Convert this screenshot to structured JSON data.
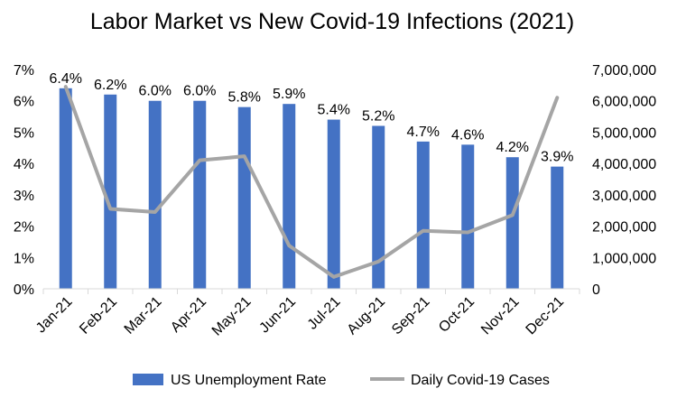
{
  "chart_data": {
    "type": "bar",
    "title": "Labor Market vs New Covid-19 Infections (2021)",
    "categories": [
      "Jan-21",
      "Feb-21",
      "Mar-21",
      "Apr-21",
      "May-21",
      "Jun-21",
      "Jul-21",
      "Aug-21",
      "Sep-21",
      "Oct-21",
      "Nov-21",
      "Dec-21"
    ],
    "series": [
      {
        "name": "US Unemployment Rate",
        "type": "bar",
        "axis": "left",
        "color": "#4472C4",
        "values": [
          6.4,
          6.2,
          6.0,
          6.0,
          5.8,
          5.9,
          5.4,
          5.2,
          4.7,
          4.6,
          4.2,
          3.9
        ],
        "data_labels": [
          "6.4%",
          "6.2%",
          "6.0%",
          "6.0%",
          "5.8%",
          "5.9%",
          "5.4%",
          "5.2%",
          "4.7%",
          "4.6%",
          "4.2%",
          "3.9%"
        ]
      },
      {
        "name": "Daily Covid-19 Cases",
        "type": "line",
        "axis": "right",
        "color": "#A5A5A5",
        "values": [
          6450000,
          2550000,
          2450000,
          4100000,
          4230000,
          1380000,
          380000,
          870000,
          1850000,
          1800000,
          2350000,
          6100000
        ]
      }
    ],
    "y_left": {
      "ylim": [
        0,
        7
      ],
      "tick_labels": [
        "0%",
        "1%",
        "2%",
        "3%",
        "4%",
        "5%",
        "6%",
        "7%"
      ]
    },
    "y_right": {
      "ylim": [
        0,
        7000000
      ],
      "tick_labels": [
        "0",
        "1,000,000",
        "2,000,000",
        "3,000,000",
        "4,000,000",
        "5,000,000",
        "6,000,000",
        "7,000,000"
      ]
    },
    "grid": false,
    "legend_position": "bottom"
  }
}
